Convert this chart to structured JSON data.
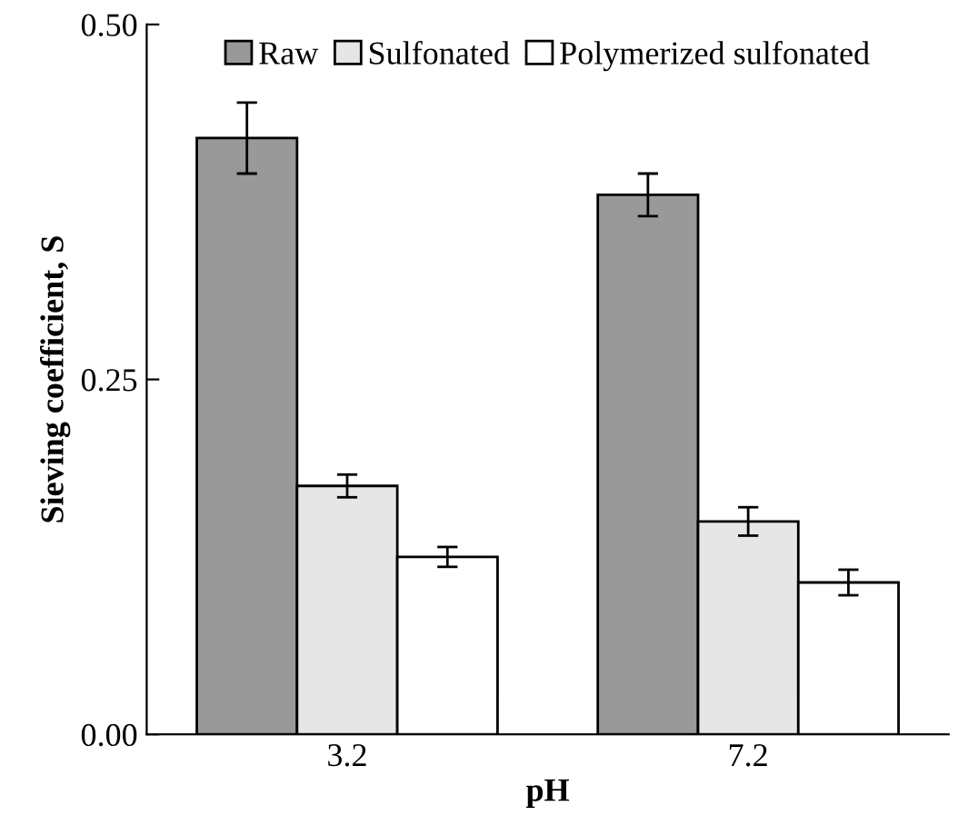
{
  "chart_data": {
    "type": "bar",
    "xlabel": "pH",
    "ylabel": "Sieving coefficient, S",
    "categories": [
      "3.2",
      "7.2"
    ],
    "series": [
      {
        "name": "Raw",
        "color": "#999999",
        "values": [
          0.42,
          0.38
        ],
        "errors": [
          0.025,
          0.015
        ]
      },
      {
        "name": "Sulfonated",
        "color": "#e6e6e6",
        "values": [
          0.175,
          0.15
        ],
        "errors": [
          0.008,
          0.01
        ]
      },
      {
        "name": "Polymerized sulfonated",
        "color": "#ffffff",
        "values": [
          0.125,
          0.107
        ],
        "errors": [
          0.007,
          0.009
        ]
      }
    ],
    "ylim": [
      0,
      0.5
    ],
    "yticks": [
      {
        "value": 0,
        "label": "0.00"
      },
      {
        "value": 0.25,
        "label": "0.25"
      },
      {
        "value": 0.5,
        "label": "0.50"
      }
    ],
    "legend": "top",
    "grid": false
  }
}
